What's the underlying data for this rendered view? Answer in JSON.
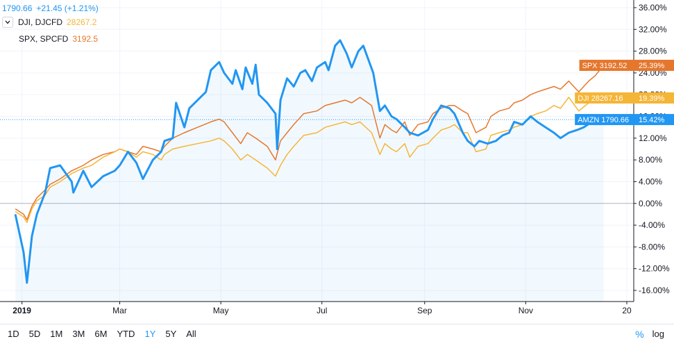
{
  "legend": {
    "main": {
      "price": "1790.66",
      "change": "+21.45 (+1.21%)"
    },
    "series": [
      {
        "label": "DJI, DJCFD",
        "value": "28267.2"
      },
      {
        "label": "SPX, SPCFD",
        "value": "3192.5"
      }
    ]
  },
  "bottom_bar": {
    "ranges": [
      "1D",
      "5D",
      "1M",
      "3M",
      "6M",
      "YTD",
      "1Y",
      "5Y",
      "All"
    ],
    "active_range": "1Y",
    "percent_label": "%",
    "log_label": "log"
  },
  "colors": {
    "amzn": "#2196f3",
    "dji": "#f5b537",
    "spx": "#e5772d"
  },
  "chart_data": {
    "type": "line",
    "x_axis_ticks": [
      "2019",
      "Mar",
      "May",
      "Jul",
      "Sep",
      "Nov",
      "20"
    ],
    "x_range": [
      "2019-01-01",
      "2020-01-02"
    ],
    "y_unit": "%",
    "y_ticks": [
      36,
      32,
      28,
      24,
      20,
      16,
      12,
      8,
      4,
      0,
      -4,
      -8,
      -12,
      -16
    ],
    "y_tick_labels": [
      "36.00%",
      "32.00%",
      "28.00%",
      "24.00%",
      "20.00%",
      "16.00%",
      "12.00%",
      "8.00%",
      "4.00%",
      "0.00%",
      "-4.00%",
      "-8.00%",
      "-12.00%",
      "-16.00%"
    ],
    "ylim": [
      -17.2,
      37.5
    ],
    "grid": true,
    "zero_line": 0,
    "last_value_line": 15.42,
    "series": [
      {
        "name": "AMZN",
        "color": "#2196f3",
        "area_fill": true,
        "badge": "AMZN 1790.66",
        "last_pct": "15.42%",
        "points": [
          [
            "2018-12-28",
            -2.0
          ],
          [
            "2019-01-02",
            -9.0
          ],
          [
            "2019-01-04",
            -14.6
          ],
          [
            "2019-01-07",
            -6.0
          ],
          [
            "2019-01-10",
            -2.0
          ],
          [
            "2019-01-15",
            2.0
          ],
          [
            "2019-01-18",
            6.5
          ],
          [
            "2019-01-24",
            7.0
          ],
          [
            "2019-01-31",
            4.0
          ],
          [
            "2019-02-01",
            2.0
          ],
          [
            "2019-02-07",
            6.0
          ],
          [
            "2019-02-12",
            3.0
          ],
          [
            "2019-02-19",
            5.0
          ],
          [
            "2019-02-26",
            6.0
          ],
          [
            "2019-03-01",
            7.0
          ],
          [
            "2019-03-06",
            9.5
          ],
          [
            "2019-03-11",
            7.5
          ],
          [
            "2019-03-15",
            4.5
          ],
          [
            "2019-03-21",
            8.0
          ],
          [
            "2019-03-26",
            9.5
          ],
          [
            "2019-03-28",
            11.5
          ],
          [
            "2019-04-02",
            12.0
          ],
          [
            "2019-04-04",
            18.5
          ],
          [
            "2019-04-09",
            14.0
          ],
          [
            "2019-04-12",
            17.5
          ],
          [
            "2019-04-17",
            19.0
          ],
          [
            "2019-04-22",
            20.5
          ],
          [
            "2019-04-25",
            24.5
          ],
          [
            "2019-04-30",
            26.0
          ],
          [
            "2019-05-03",
            24.0
          ],
          [
            "2019-05-08",
            22.0
          ],
          [
            "2019-05-10",
            24.5
          ],
          [
            "2019-05-14",
            21.0
          ],
          [
            "2019-05-16",
            25.0
          ],
          [
            "2019-05-20",
            22.0
          ],
          [
            "2019-05-22",
            25.5
          ],
          [
            "2019-05-24",
            20.0
          ],
          [
            "2019-05-29",
            18.5
          ],
          [
            "2019-06-03",
            16.5
          ],
          [
            "2019-06-04",
            10.0
          ],
          [
            "2019-06-06",
            19.0
          ],
          [
            "2019-06-10",
            23.0
          ],
          [
            "2019-06-14",
            21.5
          ],
          [
            "2019-06-18",
            24.0
          ],
          [
            "2019-06-21",
            24.5
          ],
          [
            "2019-06-25",
            22.5
          ],
          [
            "2019-06-28",
            25.0
          ],
          [
            "2019-07-03",
            26.0
          ],
          [
            "2019-07-05",
            24.5
          ],
          [
            "2019-07-09",
            29.0
          ],
          [
            "2019-07-12",
            30.0
          ],
          [
            "2019-07-16",
            27.5
          ],
          [
            "2019-07-19",
            25.0
          ],
          [
            "2019-07-23",
            28.0
          ],
          [
            "2019-07-26",
            29.0
          ],
          [
            "2019-08-01",
            24.0
          ],
          [
            "2019-08-05",
            17.0
          ],
          [
            "2019-08-08",
            18.0
          ],
          [
            "2019-08-12",
            16.0
          ],
          [
            "2019-08-15",
            15.5
          ],
          [
            "2019-08-20",
            14.0
          ],
          [
            "2019-08-23",
            13.0
          ],
          [
            "2019-08-28",
            12.5
          ],
          [
            "2019-09-03",
            13.5
          ],
          [
            "2019-09-06",
            15.5
          ],
          [
            "2019-09-11",
            18.0
          ],
          [
            "2019-09-16",
            17.5
          ],
          [
            "2019-09-19",
            16.5
          ],
          [
            "2019-09-24",
            13.0
          ],
          [
            "2019-09-27",
            11.5
          ],
          [
            "2019-10-01",
            10.5
          ],
          [
            "2019-10-04",
            11.5
          ],
          [
            "2019-10-09",
            11.0
          ],
          [
            "2019-10-14",
            11.5
          ],
          [
            "2019-10-18",
            12.5
          ],
          [
            "2019-10-22",
            13.0
          ],
          [
            "2019-10-25",
            15.0
          ],
          [
            "2019-10-30",
            14.5
          ],
          [
            "2019-11-04",
            16.0
          ],
          [
            "2019-11-08",
            15.0
          ],
          [
            "2019-11-13",
            14.0
          ],
          [
            "2019-11-18",
            13.0
          ],
          [
            "2019-11-22",
            12.0
          ],
          [
            "2019-11-27",
            13.0
          ],
          [
            "2019-12-02",
            13.5
          ],
          [
            "2019-12-06",
            14.0
          ],
          [
            "2019-12-11",
            15.0
          ],
          [
            "2019-12-18",
            15.42
          ]
        ]
      },
      {
        "name": "DJI",
        "color": "#f5b537",
        "area_fill": false,
        "badge": "DJI 28267.16",
        "last_pct": "19.39%",
        "points": [
          [
            "2018-12-28",
            -1.5
          ],
          [
            "2019-01-02",
            -2.5
          ],
          [
            "2019-01-04",
            -3.5
          ],
          [
            "2019-01-07",
            -1.0
          ],
          [
            "2019-01-10",
            0.5
          ],
          [
            "2019-01-15",
            1.5
          ],
          [
            "2019-01-18",
            3.0
          ],
          [
            "2019-01-24",
            4.0
          ],
          [
            "2019-01-31",
            5.5
          ],
          [
            "2019-02-07",
            6.5
          ],
          [
            "2019-02-12",
            7.0
          ],
          [
            "2019-02-19",
            8.5
          ],
          [
            "2019-02-26",
            9.5
          ],
          [
            "2019-03-01",
            10.0
          ],
          [
            "2019-03-06",
            9.5
          ],
          [
            "2019-03-11",
            8.5
          ],
          [
            "2019-03-15",
            9.5
          ],
          [
            "2019-03-21",
            9.0
          ],
          [
            "2019-03-26",
            8.0
          ],
          [
            "2019-03-28",
            9.0
          ],
          [
            "2019-04-02",
            10.0
          ],
          [
            "2019-04-09",
            10.5
          ],
          [
            "2019-04-17",
            11.0
          ],
          [
            "2019-04-25",
            11.5
          ],
          [
            "2019-04-30",
            12.0
          ],
          [
            "2019-05-03",
            11.5
          ],
          [
            "2019-05-08",
            10.0
          ],
          [
            "2019-05-13",
            8.0
          ],
          [
            "2019-05-17",
            9.0
          ],
          [
            "2019-05-22",
            8.0
          ],
          [
            "2019-05-29",
            6.5
          ],
          [
            "2019-06-03",
            5.0
          ],
          [
            "2019-06-06",
            7.0
          ],
          [
            "2019-06-10",
            9.0
          ],
          [
            "2019-06-14",
            10.5
          ],
          [
            "2019-06-20",
            12.5
          ],
          [
            "2019-06-28",
            13.0
          ],
          [
            "2019-07-03",
            14.0
          ],
          [
            "2019-07-09",
            14.5
          ],
          [
            "2019-07-15",
            15.0
          ],
          [
            "2019-07-19",
            14.5
          ],
          [
            "2019-07-24",
            15.0
          ],
          [
            "2019-07-31",
            13.0
          ],
          [
            "2019-08-05",
            9.0
          ],
          [
            "2019-08-08",
            11.0
          ],
          [
            "2019-08-12",
            10.0
          ],
          [
            "2019-08-15",
            9.5
          ],
          [
            "2019-08-20",
            11.0
          ],
          [
            "2019-08-23",
            8.5
          ],
          [
            "2019-08-28",
            10.5
          ],
          [
            "2019-09-03",
            11.0
          ],
          [
            "2019-09-06",
            12.0
          ],
          [
            "2019-09-11",
            13.5
          ],
          [
            "2019-09-16",
            14.0
          ],
          [
            "2019-09-19",
            14.5
          ],
          [
            "2019-09-24",
            13.0
          ],
          [
            "2019-09-27",
            13.0
          ],
          [
            "2019-10-02",
            9.5
          ],
          [
            "2019-10-08",
            10.0
          ],
          [
            "2019-10-11",
            12.5
          ],
          [
            "2019-10-16",
            13.0
          ],
          [
            "2019-10-22",
            13.5
          ],
          [
            "2019-10-25",
            14.0
          ],
          [
            "2019-10-30",
            14.5
          ],
          [
            "2019-11-04",
            16.0
          ],
          [
            "2019-11-08",
            16.5
          ],
          [
            "2019-11-13",
            17.0
          ],
          [
            "2019-11-18",
            18.0
          ],
          [
            "2019-11-22",
            17.5
          ],
          [
            "2019-11-27",
            19.5
          ],
          [
            "2019-12-03",
            17.0
          ],
          [
            "2019-12-09",
            18.5
          ],
          [
            "2019-12-13",
            19.0
          ],
          [
            "2019-12-18",
            19.39
          ]
        ]
      },
      {
        "name": "SPX",
        "color": "#e5772d",
        "area_fill": false,
        "badge": "SPX 3192.52",
        "last_pct": "25.39%",
        "points": [
          [
            "2018-12-28",
            -1.0
          ],
          [
            "2019-01-02",
            -2.0
          ],
          [
            "2019-01-04",
            -3.0
          ],
          [
            "2019-01-07",
            -0.5
          ],
          [
            "2019-01-10",
            1.0
          ],
          [
            "2019-01-15",
            2.5
          ],
          [
            "2019-01-18",
            3.5
          ],
          [
            "2019-01-24",
            4.5
          ],
          [
            "2019-01-31",
            6.0
          ],
          [
            "2019-02-07",
            7.0
          ],
          [
            "2019-02-12",
            8.0
          ],
          [
            "2019-02-19",
            9.0
          ],
          [
            "2019-02-26",
            9.5
          ],
          [
            "2019-03-01",
            10.0
          ],
          [
            "2019-03-06",
            9.5
          ],
          [
            "2019-03-11",
            9.0
          ],
          [
            "2019-03-15",
            10.5
          ],
          [
            "2019-03-21",
            10.0
          ],
          [
            "2019-03-26",
            9.5
          ],
          [
            "2019-03-28",
            10.5
          ],
          [
            "2019-04-02",
            12.0
          ],
          [
            "2019-04-09",
            13.0
          ],
          [
            "2019-04-17",
            14.0
          ],
          [
            "2019-04-25",
            15.0
          ],
          [
            "2019-04-30",
            15.5
          ],
          [
            "2019-05-03",
            15.0
          ],
          [
            "2019-05-08",
            13.0
          ],
          [
            "2019-05-13",
            11.0
          ],
          [
            "2019-05-17",
            13.0
          ],
          [
            "2019-05-22",
            12.0
          ],
          [
            "2019-05-29",
            10.5
          ],
          [
            "2019-06-03",
            8.0
          ],
          [
            "2019-06-06",
            11.5
          ],
          [
            "2019-06-10",
            13.0
          ],
          [
            "2019-06-14",
            14.5
          ],
          [
            "2019-06-20",
            16.5
          ],
          [
            "2019-06-28",
            17.0
          ],
          [
            "2019-07-03",
            18.0
          ],
          [
            "2019-07-09",
            18.5
          ],
          [
            "2019-07-15",
            19.0
          ],
          [
            "2019-07-19",
            18.5
          ],
          [
            "2019-07-24",
            19.5
          ],
          [
            "2019-07-31",
            18.0
          ],
          [
            "2019-08-05",
            12.0
          ],
          [
            "2019-08-08",
            14.5
          ],
          [
            "2019-08-12",
            13.5
          ],
          [
            "2019-08-15",
            13.0
          ],
          [
            "2019-08-20",
            15.0
          ],
          [
            "2019-08-23",
            12.5
          ],
          [
            "2019-08-28",
            14.5
          ],
          [
            "2019-09-03",
            15.0
          ],
          [
            "2019-09-06",
            16.5
          ],
          [
            "2019-09-11",
            17.5
          ],
          [
            "2019-09-16",
            18.0
          ],
          [
            "2019-09-19",
            18.0
          ],
          [
            "2019-09-24",
            17.0
          ],
          [
            "2019-09-27",
            16.5
          ],
          [
            "2019-10-02",
            13.0
          ],
          [
            "2019-10-08",
            14.0
          ],
          [
            "2019-10-11",
            16.0
          ],
          [
            "2019-10-16",
            17.0
          ],
          [
            "2019-10-22",
            17.5
          ],
          [
            "2019-10-25",
            18.5
          ],
          [
            "2019-10-30",
            19.0
          ],
          [
            "2019-11-04",
            20.0
          ],
          [
            "2019-11-08",
            20.5
          ],
          [
            "2019-11-13",
            21.0
          ],
          [
            "2019-11-18",
            21.5
          ],
          [
            "2019-11-22",
            21.0
          ],
          [
            "2019-11-27",
            22.5
          ],
          [
            "2019-12-03",
            20.5
          ],
          [
            "2019-12-09",
            22.5
          ],
          [
            "2019-12-13",
            23.5
          ],
          [
            "2019-12-18",
            25.39
          ]
        ]
      }
    ]
  }
}
